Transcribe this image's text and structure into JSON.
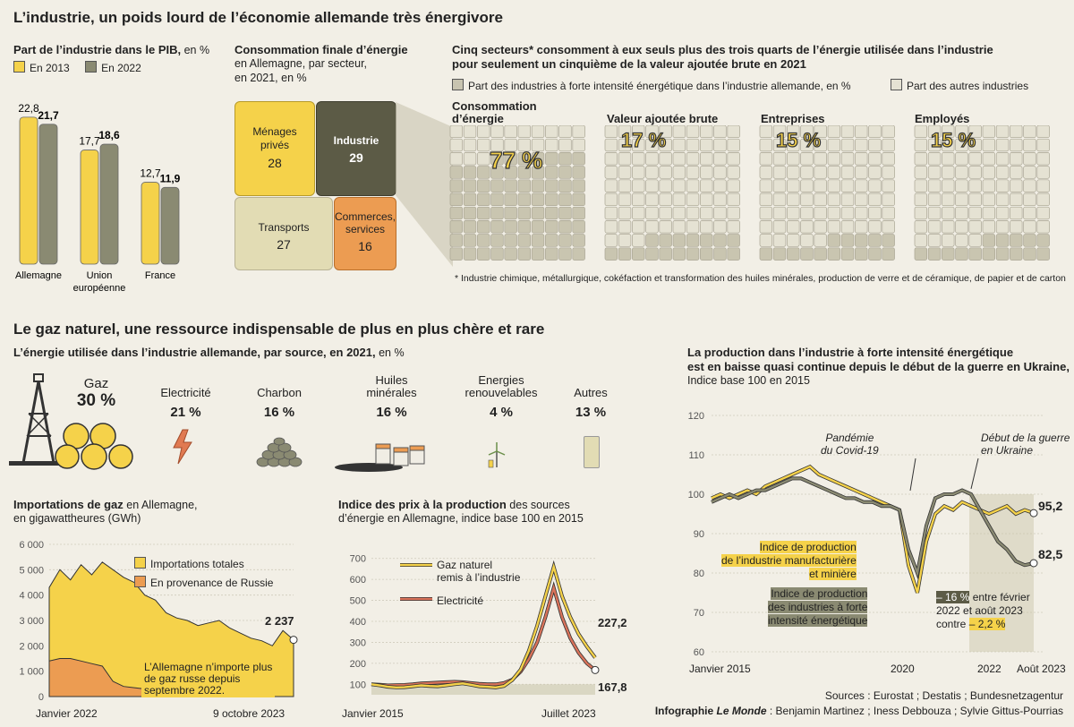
{
  "title_main": "L’industrie, un poids lourd de l’économie allemande très énergivore",
  "title_gas": "Le gaz naturel, une ressource indispensable de plus en plus chère et rare",
  "colors": {
    "yellow": "#f5d24a",
    "olive": "#8a8a72",
    "dark": "#5c5b46",
    "light": "#e2dcb4",
    "orange": "#ec9c52",
    "bg": "#f2efe6"
  },
  "pib": {
    "title": "Part de l’industrie dans le PIB,",
    "unit": " en %",
    "legend": [
      "En 2013",
      "En 2022"
    ],
    "chart_data": {
      "type": "bar",
      "categories": [
        "Allemagne",
        "Union européenne",
        "France"
      ],
      "series": [
        {
          "name": "En 2013",
          "values": [
            22.8,
            17.7,
            12.7
          ]
        },
        {
          "name": "En 2022",
          "values": [
            21.7,
            18.6,
            11.9
          ]
        }
      ],
      "value_labels": [
        [
          "22,8",
          "21,7"
        ],
        [
          "17,7",
          "18,6"
        ],
        [
          "12,7",
          "11,9"
        ]
      ],
      "cat_lines": [
        [
          "Allemagne"
        ],
        [
          "Union",
          "européenne"
        ],
        [
          "France"
        ]
      ],
      "ylim": [
        0,
        25
      ]
    }
  },
  "conso": {
    "title": "Consommation finale d’énergie",
    "subtitle1": "en Allemagne, par secteur,",
    "subtitle2": "en 2021, en %",
    "chart_data": {
      "type": "treemap",
      "items": [
        {
          "label": "Ménages privés",
          "value": 28
        },
        {
          "label": "Industrie",
          "value": 29
        },
        {
          "label": "Transports",
          "value": 27
        },
        {
          "label": "Commerces, services",
          "value": 16
        }
      ]
    },
    "labels": {
      "menages1": "Ménages",
      "menages2": "privés",
      "menages_v": "28",
      "industrie": "Industrie",
      "industrie_v": "29",
      "transports": "Transports",
      "transports_v": "27",
      "commerces1": "Commerces,",
      "commerces2": "services",
      "commerces_v": "16"
    }
  },
  "secteurs": {
    "title1": "Cinq secteurs* consomment à eux seuls plus des trois quarts de l’énergie utilisée dans l’industrie",
    "title2": "pour seulement un cinquième de la valeur ajoutée brute en 2021",
    "legend_a": "Part des industries à forte intensité énergétique dans l’industrie allemande, en %",
    "legend_b": "Part des autres industries",
    "note": "* Industrie chimique, métallurgique, cokéfaction et transformation des huiles minérales, production de verre et de céramique, de papier et de carton",
    "chart_data": {
      "type": "waffle",
      "items": [
        {
          "label": "Consommation d’énergie",
          "value": 77,
          "text": "77 %"
        },
        {
          "label": "Valeur ajoutée brute",
          "value": 17,
          "text": "17 %"
        },
        {
          "label": "Entreprises",
          "value": 15,
          "text": "15 %"
        },
        {
          "label": "Employés",
          "value": 15,
          "text": "15 %"
        }
      ]
    },
    "panel_titles": {
      "conso1": "Consommation",
      "conso2": "d’énergie",
      "va": "Valeur ajoutée brute",
      "ent": "Entreprises",
      "emp": "Employés"
    }
  },
  "sources_energie": {
    "title": "L’énergie utilisée dans l’industrie allemande, par source, en 2021,",
    "unit": " en %",
    "chart_data": {
      "type": "table",
      "items": [
        {
          "label": "Gaz",
          "value": 30,
          "text": "30 %"
        },
        {
          "label": "Electricité",
          "value": 21,
          "text": "21 %"
        },
        {
          "label": "Charbon",
          "value": 16,
          "text": "16 %"
        },
        {
          "label": "Huiles minérales",
          "value": 16,
          "text": "16 %"
        },
        {
          "label": "Energies renouvelables",
          "value": 4,
          "text": "4 %"
        },
        {
          "label": "Autres",
          "value": 13,
          "text": "13 %"
        }
      ]
    },
    "lbl": {
      "huiles1": "Huiles",
      "huiles2": "minérales",
      "ener1": "Energies",
      "ener2": "renouvelables"
    }
  },
  "imports": {
    "title": "Importations de gaz",
    "title_rest": " en Allemagne,",
    "subtitle": "en gigawattheures (GWh)",
    "legend": [
      "Importations totales",
      "En provenance de Russie"
    ],
    "annotation1": "L’Allemagne n’importe plus",
    "annotation2": "de gaz russe depuis",
    "annotation3": "septembre 2022.",
    "last_value": "2 237",
    "x_labels": [
      "Janvier 2022",
      "9 octobre 2023"
    ],
    "y_ticks": [
      "6 000",
      "5 000",
      "4 000",
      "3 000",
      "2 000",
      "1 000",
      "0"
    ],
    "chart_data": {
      "type": "area",
      "x_range": [
        "2022-01",
        "2023-10-09"
      ],
      "ylim": [
        0,
        6000
      ],
      "series": [
        {
          "name": "Importations totales",
          "values": [
            4300,
            5000,
            4600,
            5200,
            4800,
            5300,
            5000,
            4700,
            4500,
            4000,
            3800,
            3300,
            3100,
            3000,
            2800,
            2900,
            3000,
            2700,
            2500,
            2300,
            2200,
            2000,
            2600,
            2237
          ]
        },
        {
          "name": "En provenance de Russie",
          "values": [
            1400,
            1500,
            1500,
            1400,
            1300,
            1200,
            600,
            400,
            350,
            300,
            0,
            0,
            0,
            0,
            0,
            0,
            0,
            0,
            0,
            0,
            0,
            0,
            0,
            0
          ]
        }
      ]
    }
  },
  "prix": {
    "title": "Indice des prix à la production",
    "title_rest": " des sources",
    "subtitle": "d’énergie en Allemagne, indice base 100 en 2015",
    "legend": [
      "Gaz naturel remis à l’industrie",
      "Electricité"
    ],
    "legend_gaz1": "Gaz naturel",
    "legend_gaz2": "remis à l’industrie",
    "val_gaz": "227,2",
    "val_elec": "167,8",
    "x_labels": [
      "Janvier 2015",
      "Juillet 2023"
    ],
    "y_ticks": [
      "700",
      "600",
      "500",
      "400",
      "300",
      "200",
      "100"
    ],
    "chart_data": {
      "type": "line",
      "x_range": [
        "2015-01",
        "2023-07"
      ],
      "ylim": [
        50,
        750
      ],
      "series": [
        {
          "name": "Gaz naturel remis à l’industrie",
          "values": [
            100,
            95,
            88,
            85,
            86,
            90,
            95,
            92,
            90,
            95,
            100,
            104,
            98,
            90,
            88,
            85,
            92,
            120,
            170,
            260,
            380,
            520,
            660,
            520,
            420,
            340,
            280,
            227
          ]
        },
        {
          "name": "Electricité",
          "values": [
            100,
            98,
            95,
            96,
            97,
            100,
            104,
            106,
            108,
            110,
            112,
            110,
            106,
            102,
            100,
            100,
            106,
            122,
            160,
            220,
            300,
            420,
            560,
            420,
            320,
            250,
            200,
            168
          ]
        }
      ]
    }
  },
  "production": {
    "title1": "La production dans l’industrie à forte intensité énergétique",
    "title2": "est en baisse quasi continue depuis le début de la guerre en Ukraine,",
    "subtitle": "Indice base 100 en 2015",
    "ann_covid1": "Pandémie",
    "ann_covid2": "du Covid-19",
    "ann_war1": "Début de la guerre",
    "ann_war2": "en Ukraine",
    "label_manu1": "Indice de production",
    "label_manu2": "de l’industrie manufacturière",
    "label_manu3": "et minière",
    "label_int1": "Indice de production",
    "label_int2": "des industries à forte",
    "label_int3": "intensité énergétique",
    "drop1": "– 16 %",
    "drop1_rest": " entre février",
    "drop2": "2022 et août 2023",
    "drop3": "contre ",
    "drop3b": "– 2,2 %",
    "val_manu": "95,2",
    "val_int": "82,5",
    "x_labels": [
      "Janvier 2015",
      "2020",
      "2022",
      "Août 2023"
    ],
    "y_ticks": [
      "120",
      "110",
      "100",
      "90",
      "80",
      "70",
      "60"
    ],
    "chart_data": {
      "type": "line",
      "x_range": [
        "2015-01",
        "2023-08"
      ],
      "ylim": [
        60,
        120
      ],
      "series": [
        {
          "name": "Indice de production de l’industrie manufacturière et minière",
          "values": [
            99,
            100,
            99,
            100,
            101,
            100,
            102,
            103,
            104,
            105,
            106,
            107,
            105,
            104,
            103,
            102,
            101,
            100,
            99,
            98,
            97,
            96,
            82,
            75,
            88,
            95,
            97,
            96,
            98,
            97,
            96,
            95,
            96,
            97,
            95,
            96,
            95.2
          ]
        },
        {
          "name": "Indice de production des industries à forte intensité énergétique",
          "values": [
            98,
            99,
            100,
            99,
            100,
            101,
            101,
            102,
            103,
            104,
            104,
            103,
            102,
            101,
            100,
            99,
            99,
            98,
            98,
            97,
            97,
            96,
            86,
            80,
            92,
            99,
            100,
            100,
            101,
            100,
            96,
            92,
            88,
            86,
            83,
            82,
            82.5
          ]
        }
      ]
    }
  },
  "footer": {
    "sources": "Sources : Eurostat ; Destatis ; Bundesnetzagentur",
    "credit_a": "Infographie ",
    "credit_b": "Le Monde",
    "credit_c": " : Benjamin Martinez ; Iness Debbouza ; Sylvie Gittus-Pourrias"
  }
}
